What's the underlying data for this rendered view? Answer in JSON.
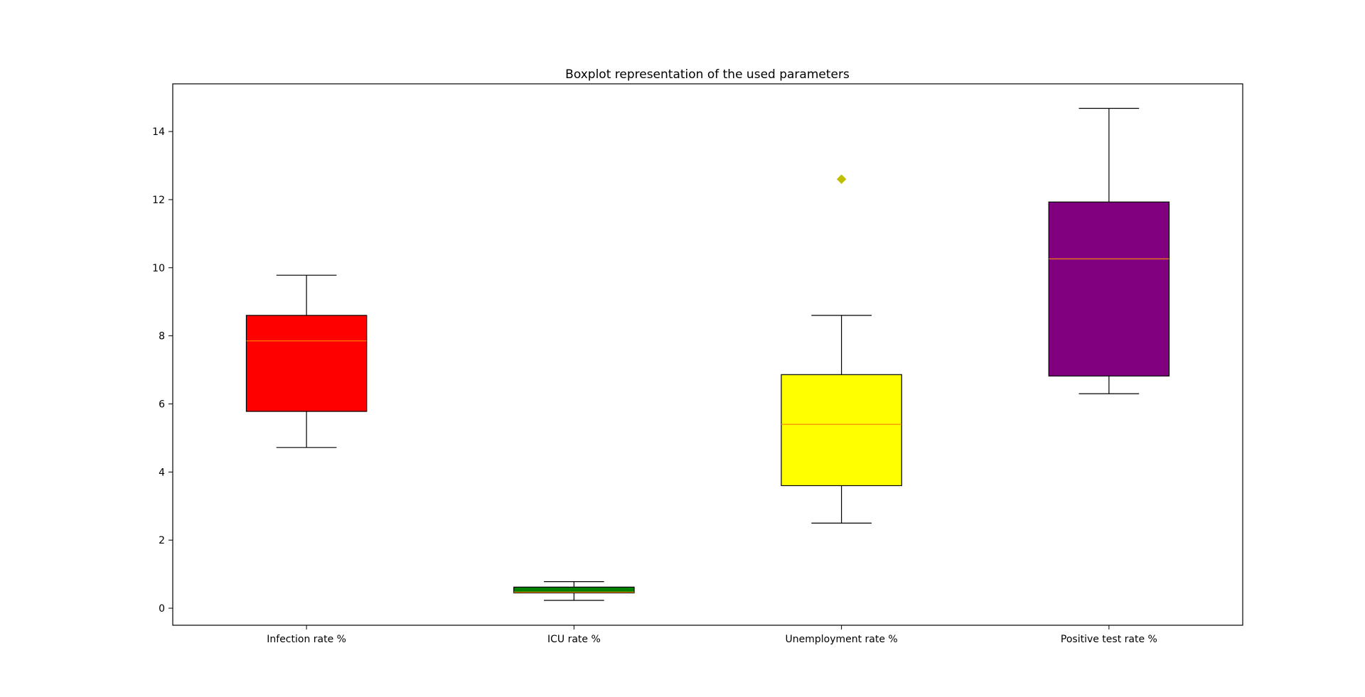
{
  "chart_data": {
    "type": "boxplot",
    "title": "Boxplot representation of the used parameters",
    "xlabel": "",
    "ylabel": "",
    "categories": [
      "Infection rate %",
      "ICU rate %",
      "Unemployment rate %",
      "Positive test rate %"
    ],
    "boxes": [
      {
        "label": "Infection rate %",
        "whisker_low": 4.72,
        "q1": 5.78,
        "median": 7.85,
        "q3": 8.6,
        "whisker_high": 9.78,
        "outliers": [],
        "fill": "#ff0000"
      },
      {
        "label": "ICU rate %",
        "whisker_low": 0.23,
        "q1": 0.45,
        "median": 0.47,
        "q3": 0.62,
        "whisker_high": 0.78,
        "outliers": [],
        "fill": "#008000"
      },
      {
        "label": "Unemployment rate %",
        "whisker_low": 2.5,
        "q1": 3.6,
        "median": 5.4,
        "q3": 6.86,
        "whisker_high": 8.6,
        "outliers": [
          12.6
        ],
        "fill": "#ffff00"
      },
      {
        "label": "Positive test rate %",
        "whisker_low": 6.3,
        "q1": 6.82,
        "median": 10.26,
        "q3": 11.93,
        "whisker_high": 14.68,
        "outliers": [],
        "fill": "#800080"
      }
    ],
    "y_ticks": [
      0,
      2,
      4,
      6,
      8,
      10,
      12,
      14
    ],
    "ylim": [
      -0.5,
      15.4
    ],
    "grid": false,
    "median_color": "#ff8c00",
    "outlier_color": "#bfbf00",
    "outlier_marker": "diamond"
  }
}
